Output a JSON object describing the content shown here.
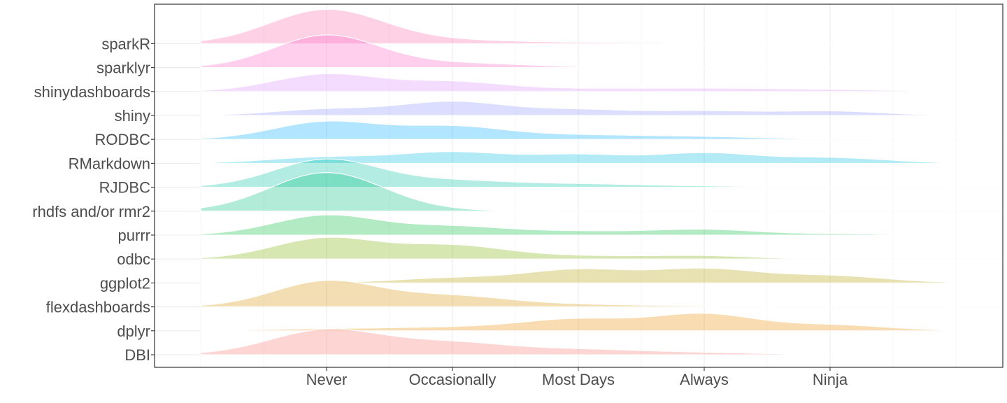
{
  "chart_data": {
    "type": "area",
    "subtype": "ridgeline",
    "title": "",
    "xlabel": "",
    "ylabel": "",
    "x_categories": [
      "Never",
      "Occasionally",
      "Most Days",
      "Always",
      "Ninja"
    ],
    "x_domain": [
      0.0,
      6.5
    ],
    "grid": true,
    "legend": "none",
    "series": [
      {
        "name": "DBI",
        "color": "#F8766D",
        "peaks": [
          [
            1.0,
            0.8,
            0.45
          ],
          [
            2.0,
            0.36,
            0.45
          ],
          [
            3.0,
            0.16,
            0.5
          ],
          [
            4.0,
            0.06,
            0.5
          ]
        ]
      },
      {
        "name": "dplyr",
        "color": "#EE8A00",
        "peaks": [
          [
            1.0,
            0.06,
            0.5
          ],
          [
            2.0,
            0.1,
            0.5
          ],
          [
            3.0,
            0.37,
            0.45
          ],
          [
            4.0,
            0.52,
            0.4
          ],
          [
            5.0,
            0.19,
            0.45
          ]
        ]
      },
      {
        "name": "flexdashboards",
        "color": "#D39200",
        "peaks": [
          [
            1.0,
            0.83,
            0.42
          ],
          [
            2.0,
            0.34,
            0.45
          ],
          [
            3.0,
            0.07,
            0.5
          ],
          [
            4.0,
            0.02,
            0.5
          ]
        ]
      },
      {
        "name": "ggplot2",
        "color": "#B4A000",
        "peaks": [
          [
            2.0,
            0.16,
            0.45
          ],
          [
            3.0,
            0.42,
            0.42
          ],
          [
            4.0,
            0.44,
            0.42
          ],
          [
            5.0,
            0.23,
            0.45
          ]
        ]
      },
      {
        "name": "odbc",
        "color": "#7CAE00",
        "peaks": [
          [
            1.0,
            0.68,
            0.42
          ],
          [
            2.0,
            0.42,
            0.42
          ],
          [
            3.0,
            0.1,
            0.5
          ],
          [
            4.0,
            0.1,
            0.4
          ]
        ]
      },
      {
        "name": "purrr",
        "color": "#00BA38",
        "peaks": [
          [
            1.0,
            0.64,
            0.42
          ],
          [
            2.0,
            0.26,
            0.42
          ],
          [
            3.0,
            0.12,
            0.5
          ],
          [
            4.0,
            0.17,
            0.4
          ],
          [
            5.0,
            0.04,
            0.5
          ]
        ]
      },
      {
        "name": "rhdfs and/or rmr2",
        "color": "#00BF7D",
        "peaks": [
          [
            1.0,
            1.25,
            0.45
          ],
          [
            1.9,
            0.02,
            0.4
          ]
        ]
      },
      {
        "name": "RJDBC",
        "color": "#00C1A3",
        "peaks": [
          [
            1.0,
            0.9,
            0.42
          ],
          [
            2.0,
            0.2,
            0.45
          ],
          [
            3.0,
            0.1,
            0.5
          ],
          [
            4.0,
            0.03,
            0.5
          ]
        ]
      },
      {
        "name": "RMarkdown",
        "color": "#00BAE0",
        "peaks": [
          [
            1.0,
            0.2,
            0.45
          ],
          [
            2.0,
            0.35,
            0.42
          ],
          [
            3.0,
            0.27,
            0.4
          ],
          [
            4.0,
            0.32,
            0.4
          ],
          [
            5.0,
            0.18,
            0.45
          ]
        ]
      },
      {
        "name": "RODBC",
        "color": "#00A9FF",
        "peaks": [
          [
            1.0,
            0.57,
            0.42
          ],
          [
            2.0,
            0.4,
            0.42
          ],
          [
            3.0,
            0.13,
            0.5
          ],
          [
            4.0,
            0.08,
            0.5
          ]
        ]
      },
      {
        "name": "shiny",
        "color": "#8B93FF",
        "peaks": [
          [
            1.0,
            0.2,
            0.42
          ],
          [
            2.0,
            0.44,
            0.42
          ],
          [
            3.0,
            0.18,
            0.42
          ],
          [
            4.0,
            0.14,
            0.42
          ],
          [
            5.0,
            0.14,
            0.42
          ]
        ]
      },
      {
        "name": "shinydashboards",
        "color": "#DA8AFF",
        "peaks": [
          [
            1.0,
            0.56,
            0.42
          ],
          [
            2.0,
            0.3,
            0.42
          ],
          [
            3.0,
            0.08,
            0.5
          ],
          [
            4.0,
            0.09,
            0.5
          ],
          [
            5.0,
            0.06,
            0.5
          ]
        ]
      },
      {
        "name": "sparklyr",
        "color": "#FF61C3",
        "peaks": [
          [
            1.0,
            1.05,
            0.42
          ],
          [
            2.0,
            0.13,
            0.45
          ],
          [
            2.6,
            0.03,
            0.4
          ]
        ]
      },
      {
        "name": "sparkR",
        "color": "#FF66A8",
        "peaks": [
          [
            1.0,
            1.1,
            0.45
          ],
          [
            2.0,
            0.1,
            0.5
          ],
          [
            3.0,
            0.03,
            0.5
          ],
          [
            4.0,
            0.02,
            0.5
          ]
        ]
      }
    ]
  }
}
